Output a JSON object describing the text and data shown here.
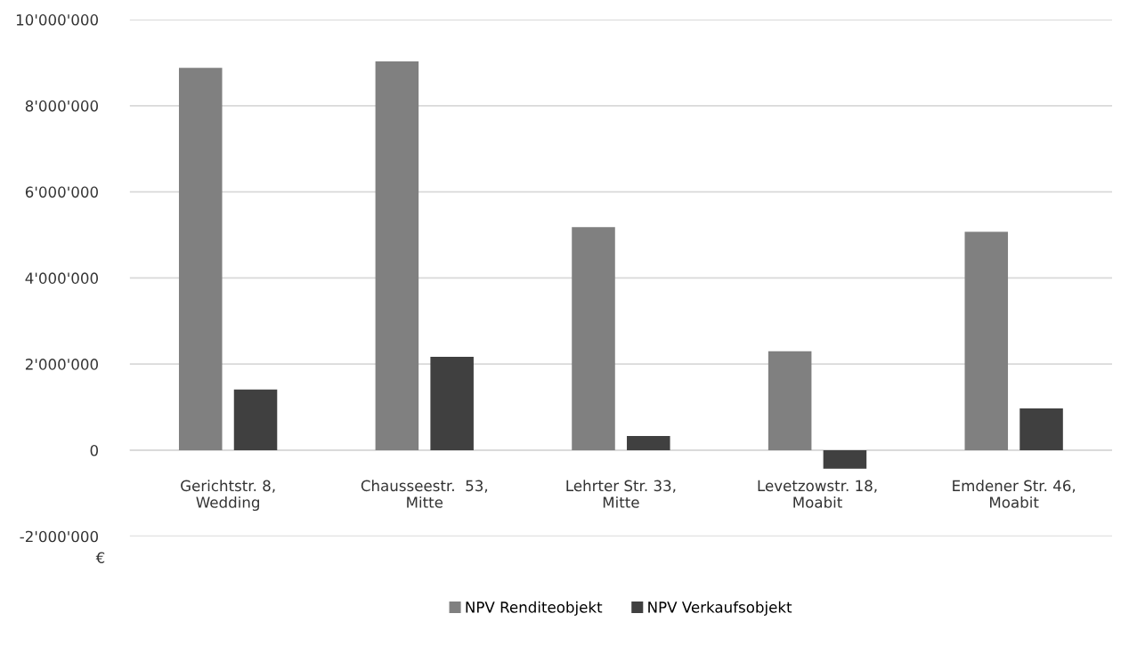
{
  "chart_data": {
    "type": "bar",
    "categories": [
      "Gerichtstr. 8,\nWedding",
      "Chausseestr.  53,\nMitte",
      "Lehrter Str. 33,\nMitte",
      "Levetzowstr. 18,\nMoabit",
      "Emdener Str. 46,\nMoabit"
    ],
    "series": [
      {
        "name": "NPV Renditeobjekt",
        "color": "#808080",
        "values": [
          8880000,
          9030000,
          5180000,
          2300000,
          5070000
        ]
      },
      {
        "name": "NPV Verkaufsobjekt",
        "color": "#404040",
        "values": [
          1410000,
          2170000,
          330000,
          -430000,
          970000
        ]
      }
    ],
    "ylabel": "€",
    "ylim": [
      -2000000,
      10000000
    ],
    "yticks": [
      {
        "value": -2000000,
        "label": "-2'000'000"
      },
      {
        "value": 0,
        "label": "0"
      },
      {
        "value": 2000000,
        "label": "2'000'000"
      },
      {
        "value": 4000000,
        "label": "4'000'000"
      },
      {
        "value": 6000000,
        "label": "6'000'000"
      },
      {
        "value": 8000000,
        "label": "8'000'000"
      },
      {
        "value": 10000000,
        "label": "10'000'000"
      }
    ],
    "grid": "y",
    "legend": "bottom"
  }
}
